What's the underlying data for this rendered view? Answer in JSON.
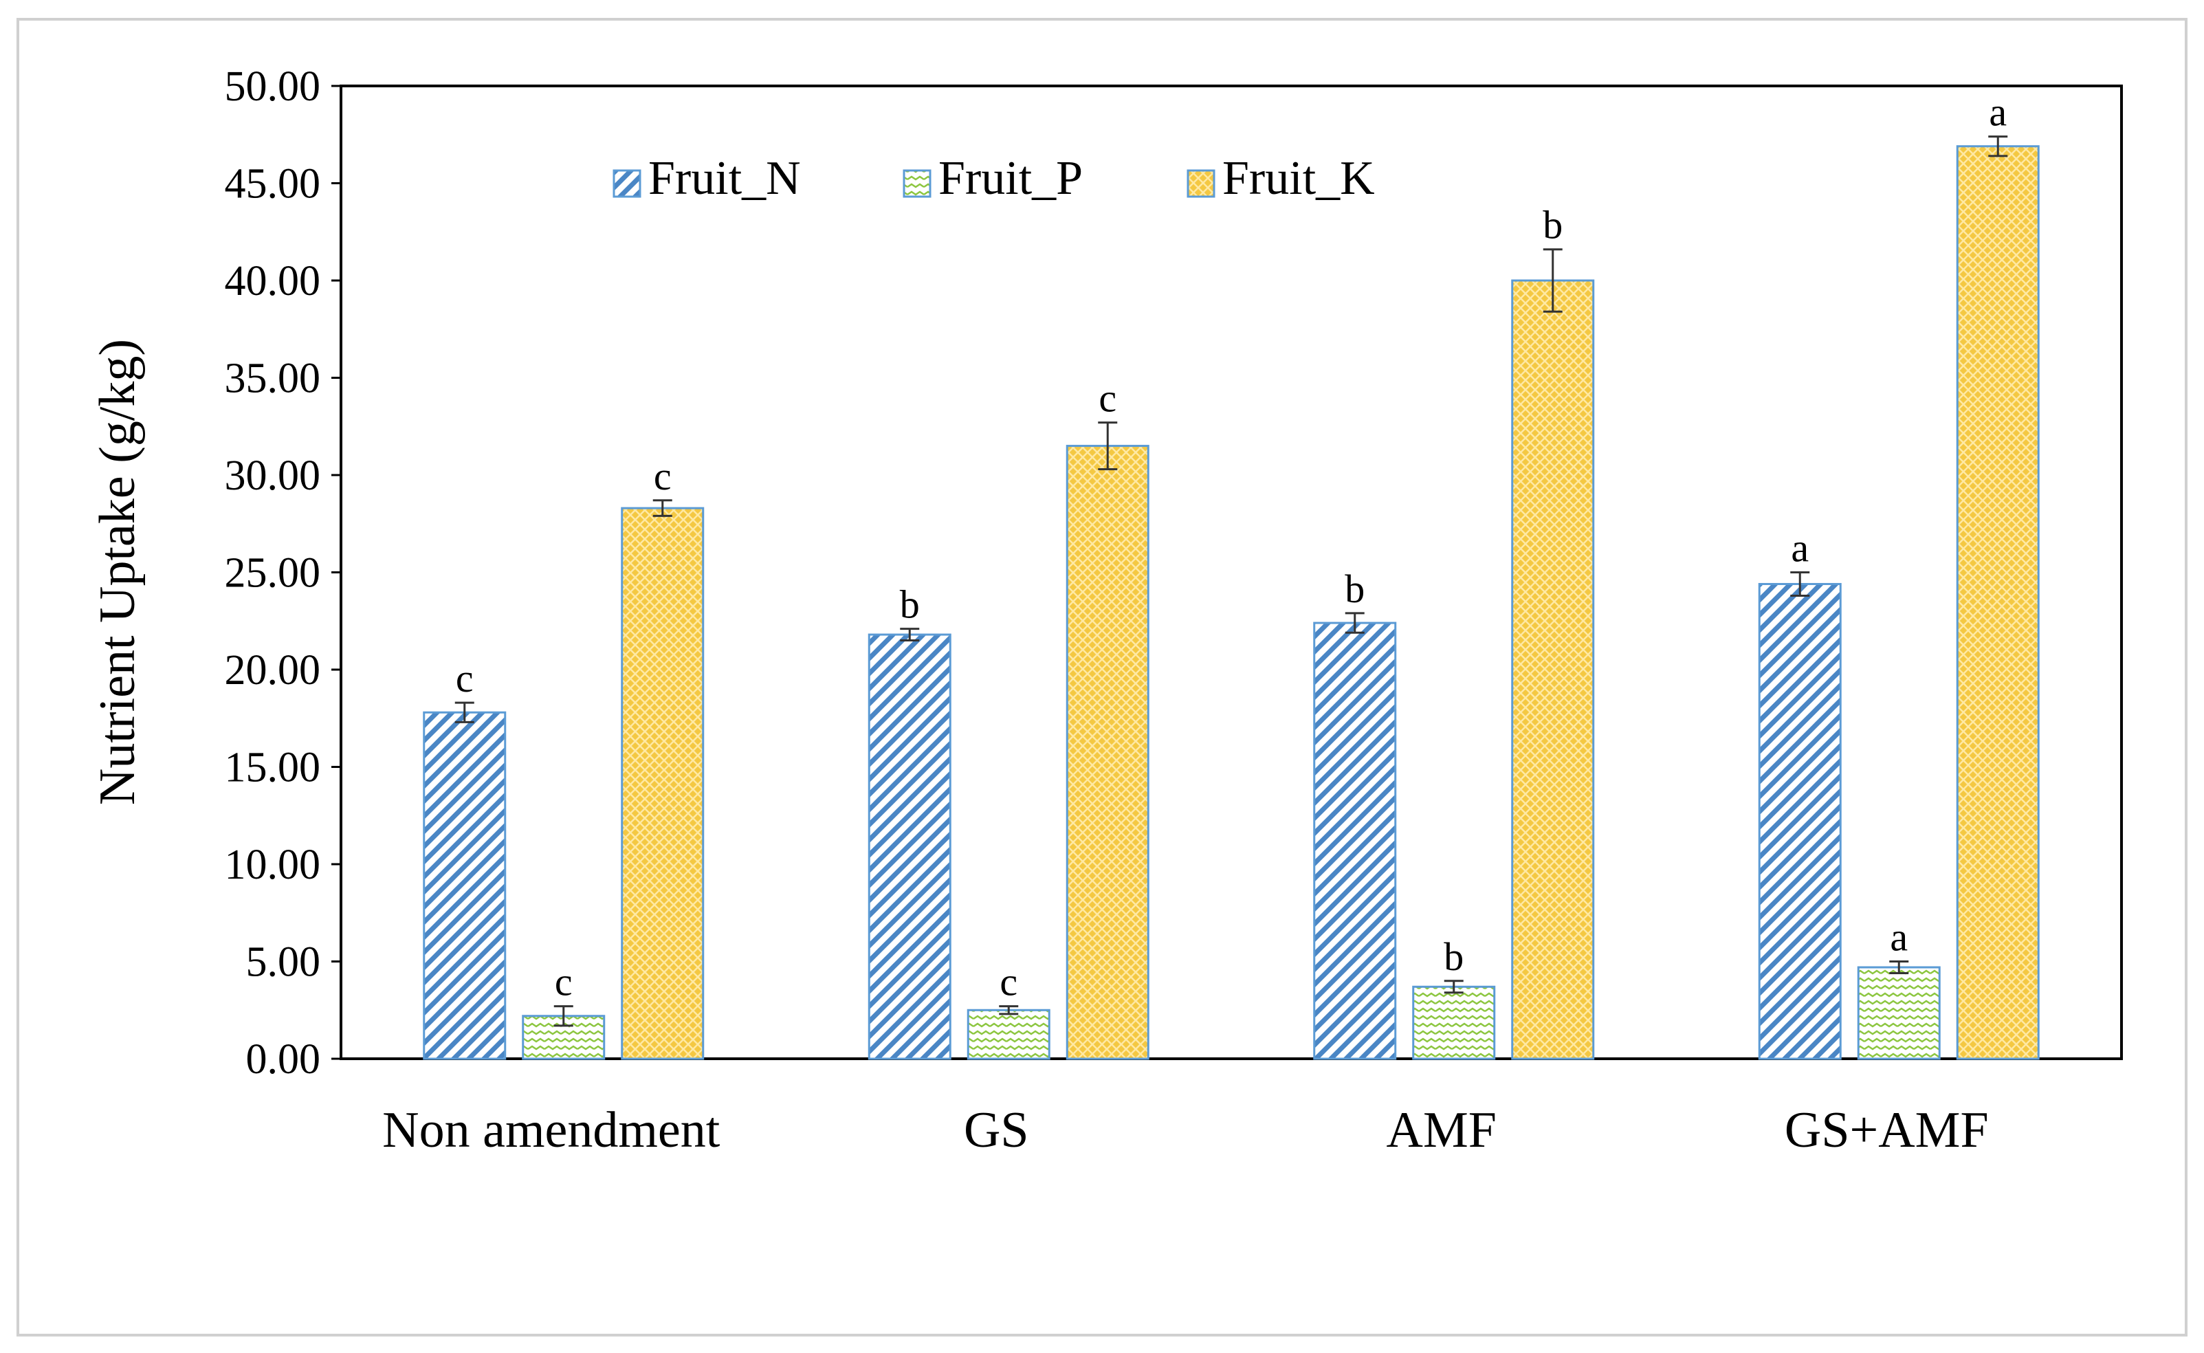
{
  "chart_data": {
    "type": "bar",
    "xlabel": "",
    "ylabel": "Nutrient Uptake (g/kg)",
    "ylim": [
      0,
      50
    ],
    "yticks": [
      "0.00",
      "5.00",
      "10.00",
      "15.00",
      "20.00",
      "25.00",
      "30.00",
      "35.00",
      "40.00",
      "45.00",
      "50.00"
    ],
    "categories": [
      "Non amendment",
      "GS",
      "AMF",
      "GS+AMF"
    ],
    "legend_position": "top",
    "grid": false,
    "series": [
      {
        "name": "Fruit_N",
        "color": "#5b9bd5",
        "pattern": "diagonal-stripes",
        "values": [
          17.8,
          21.8,
          22.4,
          24.4
        ],
        "errors": [
          0.5,
          0.3,
          0.5,
          0.6
        ],
        "letters": [
          "c",
          "b",
          "b",
          "a"
        ]
      },
      {
        "name": "Fruit_P",
        "color": "#9bd14d",
        "pattern": "wave",
        "values": [
          2.2,
          2.5,
          3.7,
          4.7
        ],
        "errors": [
          0.5,
          0.2,
          0.3,
          0.3
        ],
        "letters": [
          "c",
          "c",
          "b",
          "a"
        ]
      },
      {
        "name": "Fruit_K",
        "color": "#f2c94c",
        "pattern": "crosshatch",
        "values": [
          28.3,
          31.5,
          40.0,
          46.9
        ],
        "errors": [
          0.4,
          1.2,
          1.6,
          0.5
        ],
        "letters": [
          "c",
          "c",
          "b",
          "a"
        ]
      }
    ]
  }
}
